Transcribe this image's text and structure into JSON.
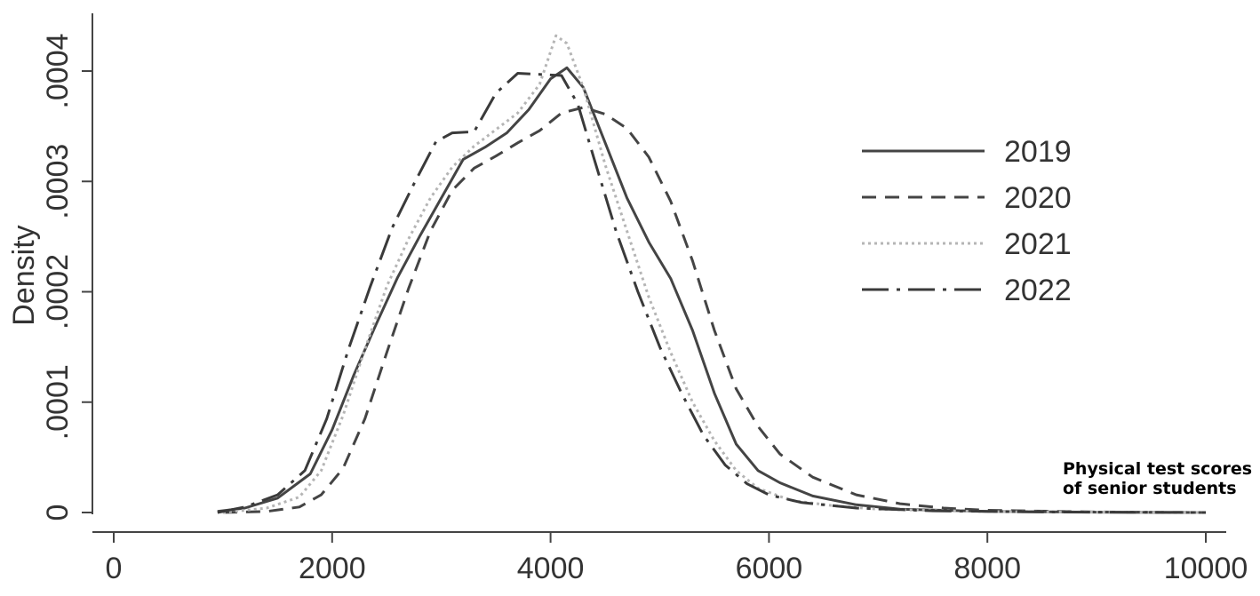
{
  "chart_data": {
    "type": "line",
    "title": "",
    "xlabel": "",
    "ylabel": "Density",
    "annotation": [
      "Physical test scores",
      "of senior students"
    ],
    "xlim": [
      0,
      10000
    ],
    "ylim": [
      0,
      0.0004
    ],
    "x_ticks": [
      0,
      2000,
      4000,
      6000,
      8000,
      10000
    ],
    "x_tick_labels": [
      "0",
      "2000",
      "4000",
      "6000",
      "8000",
      "10000"
    ],
    "y_ticks": [
      0,
      0.0001,
      0.0002,
      0.0003,
      0.0004
    ],
    "y_tick_labels": [
      "0",
      ".0001",
      ".0002",
      ".0003",
      ".0004"
    ],
    "grid": false,
    "legend_position": "right",
    "series": [
      {
        "name": "2019",
        "style": "solid",
        "color": "#444444",
        "points": [
          [
            950,
            1e-06
          ],
          [
            1200,
            4e-06
          ],
          [
            1500,
            1.3e-05
          ],
          [
            1800,
            3.5e-05
          ],
          [
            2000,
            7.5e-05
          ],
          [
            2200,
            0.000125
          ],
          [
            2400,
            0.00017
          ],
          [
            2600,
            0.000213
          ],
          [
            2800,
            0.00025
          ],
          [
            3000,
            0.000285
          ],
          [
            3200,
            0.00032
          ],
          [
            3400,
            0.000331
          ],
          [
            3600,
            0.000344
          ],
          [
            3800,
            0.000365
          ],
          [
            4000,
            0.000393
          ],
          [
            4150,
            0.000403
          ],
          [
            4300,
            0.000385
          ],
          [
            4500,
            0.000335
          ],
          [
            4700,
            0.000285
          ],
          [
            4900,
            0.000245
          ],
          [
            5100,
            0.000212
          ],
          [
            5300,
            0.000165
          ],
          [
            5500,
            0.000108
          ],
          [
            5700,
            6.2e-05
          ],
          [
            5900,
            3.8e-05
          ],
          [
            6100,
            2.7e-05
          ],
          [
            6400,
            1.5e-05
          ],
          [
            6800,
            7e-06
          ],
          [
            7200,
            3e-06
          ],
          [
            8000,
            1e-06
          ],
          [
            9000,
            3e-07
          ],
          [
            10000,
            0
          ]
        ]
      },
      {
        "name": "2020",
        "style": "dashed",
        "color": "#444444",
        "points": [
          [
            1000,
            0
          ],
          [
            1400,
            1e-06
          ],
          [
            1700,
            5e-06
          ],
          [
            1900,
            1.6e-05
          ],
          [
            2100,
            4e-05
          ],
          [
            2300,
            8.5e-05
          ],
          [
            2500,
            0.000145
          ],
          [
            2700,
            0.000203
          ],
          [
            2900,
            0.000255
          ],
          [
            3100,
            0.000292
          ],
          [
            3300,
            0.000312
          ],
          [
            3500,
            0.000323
          ],
          [
            3700,
            0.000335
          ],
          [
            3900,
            0.000346
          ],
          [
            4100,
            0.000362
          ],
          [
            4300,
            0.000367
          ],
          [
            4500,
            0.000361
          ],
          [
            4700,
            0.000348
          ],
          [
            4900,
            0.000322
          ],
          [
            5100,
            0.000282
          ],
          [
            5300,
            0.000228
          ],
          [
            5500,
            0.000165
          ],
          [
            5700,
            0.000112
          ],
          [
            5900,
            7.8e-05
          ],
          [
            6100,
            5.3e-05
          ],
          [
            6400,
            3.2e-05
          ],
          [
            6800,
            1.6e-05
          ],
          [
            7200,
            8e-06
          ],
          [
            7600,
            4e-06
          ],
          [
            8000,
            2e-06
          ],
          [
            9000,
            5e-07
          ],
          [
            10000,
            0
          ]
        ]
      },
      {
        "name": "2021",
        "style": "dotted",
        "color": "#b5b5b5",
        "points": [
          [
            1000,
            0
          ],
          [
            1400,
            4e-06
          ],
          [
            1700,
            1.4e-05
          ],
          [
            1900,
            3.8e-05
          ],
          [
            2100,
            8.8e-05
          ],
          [
            2300,
            0.000148
          ],
          [
            2500,
            0.000205
          ],
          [
            2700,
            0.000248
          ],
          [
            2900,
            0.000285
          ],
          [
            3100,
            0.000313
          ],
          [
            3300,
            0.000332
          ],
          [
            3500,
            0.000347
          ],
          [
            3700,
            0.000362
          ],
          [
            3900,
            0.000388
          ],
          [
            4050,
            0.000432
          ],
          [
            4150,
            0.000425
          ],
          [
            4300,
            0.000385
          ],
          [
            4500,
            0.000315
          ],
          [
            4700,
            0.000255
          ],
          [
            4900,
            0.000195
          ],
          [
            5100,
            0.000145
          ],
          [
            5300,
            0.0001
          ],
          [
            5500,
            6.5e-05
          ],
          [
            5700,
            3.8e-05
          ],
          [
            5900,
            2.2e-05
          ],
          [
            6200,
            1.1e-05
          ],
          [
            6600,
            6e-06
          ],
          [
            7000,
            3e-06
          ],
          [
            8000,
            8e-07
          ],
          [
            10000,
            0
          ]
        ]
      },
      {
        "name": "2022",
        "style": "dashdot",
        "color": "#3a3a3a",
        "points": [
          [
            950,
            0
          ],
          [
            1200,
            5e-06
          ],
          [
            1500,
            1.6e-05
          ],
          [
            1750,
            3.8e-05
          ],
          [
            1950,
            8.5e-05
          ],
          [
            2150,
            0.000148
          ],
          [
            2350,
            0.000205
          ],
          [
            2550,
            0.000258
          ],
          [
            2750,
            0.000298
          ],
          [
            2950,
            0.000336
          ],
          [
            3100,
            0.000344
          ],
          [
            3300,
            0.000345
          ],
          [
            3500,
            0.00038
          ],
          [
            3700,
            0.000398
          ],
          [
            3900,
            0.000397
          ],
          [
            4100,
            0.000396
          ],
          [
            4250,
            0.00037
          ],
          [
            4400,
            0.00032
          ],
          [
            4600,
            0.000255
          ],
          [
            4800,
            0.0002
          ],
          [
            5000,
            0.00015
          ],
          [
            5200,
            0.000108
          ],
          [
            5400,
            7e-05
          ],
          [
            5600,
            4.3e-05
          ],
          [
            5800,
            2.6e-05
          ],
          [
            6000,
            1.6e-05
          ],
          [
            6300,
            9e-06
          ],
          [
            6800,
            4e-06
          ],
          [
            7500,
            1.5e-06
          ],
          [
            8500,
            5e-07
          ],
          [
            10000,
            0
          ]
        ]
      }
    ]
  }
}
